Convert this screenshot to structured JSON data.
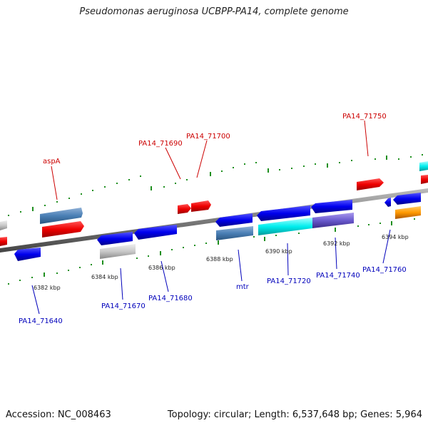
{
  "title": "Pseudomonas aeruginosa UCBPP-PA14, complete genome",
  "footer": {
    "accession": "Accession: NC_008463",
    "summary": "Topology: circular; Length: 6,537,648 bp; Genes: 5,964"
  },
  "colors": {
    "backbone": "#8c8c8c",
    "tick": "#1f8f1f",
    "upper_label": "#cc0000",
    "lower_label": "#0000bb"
  },
  "scale_labels": [
    "6382 kbp",
    "6384 kbp",
    "6386 kbp",
    "6388 kbp",
    "6390 kbp",
    "6392 kbp",
    "6394 kbp"
  ],
  "upper_genes": [
    "aspA",
    "PA14_71690",
    "PA14_71700",
    "PA14_71750"
  ],
  "lower_genes": [
    "PA14_71640",
    "PA14_71670",
    "PA14_71680",
    "mtr",
    "PA14_71720",
    "PA14_71740",
    "PA14_71760"
  ]
}
